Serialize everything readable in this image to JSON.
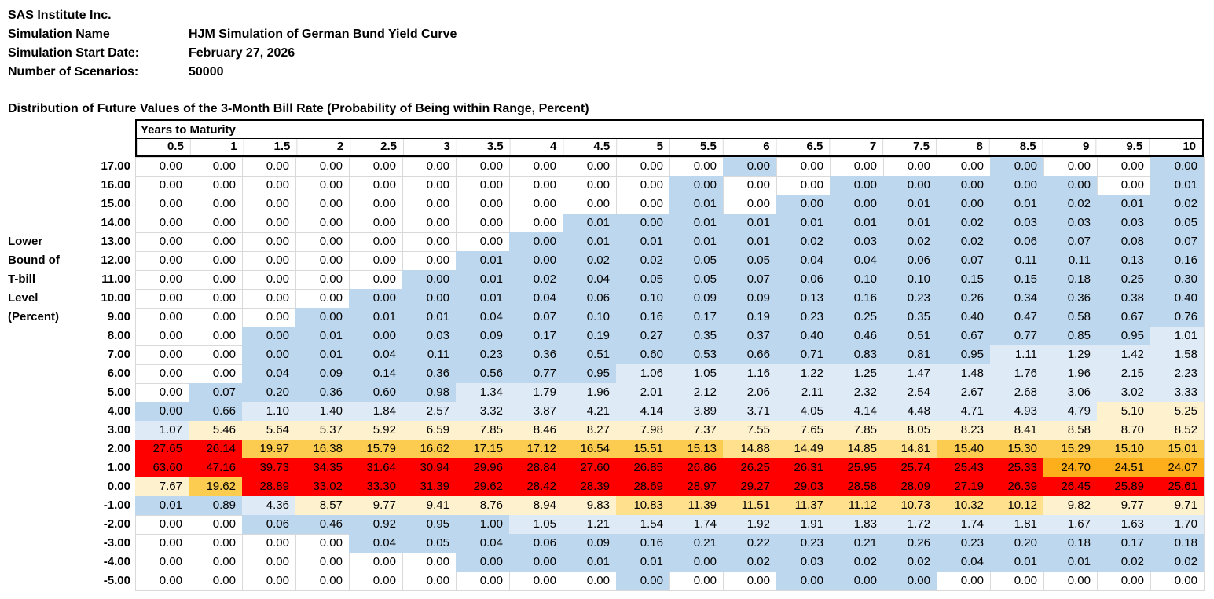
{
  "meta": {
    "company": "SAS Institute Inc.",
    "fields": [
      {
        "label": "Simulation Name",
        "value": "HJM Simulation of German Bund Yield Curve"
      },
      {
        "label": "Simulation Start Date:",
        "value": "February 27, 2026"
      },
      {
        "label": "Number of Scenarios:",
        "value": "50000"
      }
    ]
  },
  "title": "Distribution of Future Values of the 3-Month Bill Rate (Probability of Being within Range, Percent)",
  "axis": {
    "column_group_label": "Years to Maturity",
    "row_group_label_lines": [
      "Lower",
      "Bound of",
      "T-bill",
      "Level",
      "(Percent)"
    ]
  },
  "palette": {
    "w": "#FFFFFF",
    "b1": "#BDD7EE",
    "b2": "#DEEAF6",
    "c1": "#FEF2CE",
    "c2": "#FFE08C",
    "g": "#FBCC4F",
    "o": "#FCAE1B",
    "r": "#FF0000",
    "gridline": "#D9D9D9",
    "border": "#000000"
  },
  "chart_data": {
    "type": "heatmap",
    "title": "Distribution of Future Values of the 3-Month Bill Rate (Probability of Being within Range, Percent)",
    "x_label": "Years to Maturity",
    "y_label": "Lower Bound of T-bill Level (Percent)",
    "legend_position": "none",
    "grid": true,
    "columns": [
      "0.5",
      "1",
      "1.5",
      "2",
      "2.5",
      "3",
      "3.5",
      "4",
      "4.5",
      "5",
      "5.5",
      "6",
      "6.5",
      "7",
      "7.5",
      "8",
      "8.5",
      "9",
      "9.5",
      "10"
    ],
    "row_labels": [
      "17.00",
      "16.00",
      "15.00",
      "14.00",
      "13.00",
      "12.00",
      "11.00",
      "10.00",
      "9.00",
      "8.00",
      "7.00",
      "6.00",
      "5.00",
      "4.00",
      "3.00",
      "2.00",
      "1.00",
      "0.00",
      "-1.00",
      "-2.00",
      "-3.00",
      "-4.00",
      "-5.00"
    ],
    "values": [
      [
        "0.00",
        "0.00",
        "0.00",
        "0.00",
        "0.00",
        "0.00",
        "0.00",
        "0.00",
        "0.00",
        "0.00",
        "0.00",
        "0.00",
        "0.00",
        "0.00",
        "0.00",
        "0.00",
        "0.00",
        "0.00",
        "0.00",
        "0.00"
      ],
      [
        "0.00",
        "0.00",
        "0.00",
        "0.00",
        "0.00",
        "0.00",
        "0.00",
        "0.00",
        "0.00",
        "0.00",
        "0.00",
        "0.00",
        "0.00",
        "0.00",
        "0.00",
        "0.00",
        "0.00",
        "0.00",
        "0.00",
        "0.01"
      ],
      [
        "0.00",
        "0.00",
        "0.00",
        "0.00",
        "0.00",
        "0.00",
        "0.00",
        "0.00",
        "0.00",
        "0.00",
        "0.01",
        "0.00",
        "0.00",
        "0.00",
        "0.01",
        "0.00",
        "0.01",
        "0.02",
        "0.01",
        "0.02"
      ],
      [
        "0.00",
        "0.00",
        "0.00",
        "0.00",
        "0.00",
        "0.00",
        "0.00",
        "0.00",
        "0.01",
        "0.00",
        "0.01",
        "0.01",
        "0.01",
        "0.01",
        "0.01",
        "0.02",
        "0.03",
        "0.03",
        "0.03",
        "0.05"
      ],
      [
        "0.00",
        "0.00",
        "0.00",
        "0.00",
        "0.00",
        "0.00",
        "0.00",
        "0.00",
        "0.01",
        "0.01",
        "0.01",
        "0.01",
        "0.02",
        "0.03",
        "0.02",
        "0.02",
        "0.06",
        "0.07",
        "0.08",
        "0.07"
      ],
      [
        "0.00",
        "0.00",
        "0.00",
        "0.00",
        "0.00",
        "0.00",
        "0.01",
        "0.00",
        "0.02",
        "0.02",
        "0.05",
        "0.05",
        "0.04",
        "0.04",
        "0.06",
        "0.07",
        "0.11",
        "0.11",
        "0.13",
        "0.16"
      ],
      [
        "0.00",
        "0.00",
        "0.00",
        "0.00",
        "0.00",
        "0.00",
        "0.01",
        "0.02",
        "0.04",
        "0.05",
        "0.05",
        "0.07",
        "0.06",
        "0.10",
        "0.10",
        "0.15",
        "0.15",
        "0.18",
        "0.25",
        "0.30"
      ],
      [
        "0.00",
        "0.00",
        "0.00",
        "0.00",
        "0.00",
        "0.00",
        "0.01",
        "0.04",
        "0.06",
        "0.10",
        "0.09",
        "0.09",
        "0.13",
        "0.16",
        "0.23",
        "0.26",
        "0.34",
        "0.36",
        "0.38",
        "0.40"
      ],
      [
        "0.00",
        "0.00",
        "0.00",
        "0.00",
        "0.01",
        "0.01",
        "0.04",
        "0.07",
        "0.10",
        "0.16",
        "0.17",
        "0.19",
        "0.23",
        "0.25",
        "0.35",
        "0.40",
        "0.47",
        "0.58",
        "0.67",
        "0.76"
      ],
      [
        "0.00",
        "0.00",
        "0.00",
        "0.01",
        "0.00",
        "0.03",
        "0.09",
        "0.17",
        "0.19",
        "0.27",
        "0.35",
        "0.37",
        "0.40",
        "0.46",
        "0.51",
        "0.67",
        "0.77",
        "0.85",
        "0.95",
        "1.01"
      ],
      [
        "0.00",
        "0.00",
        "0.00",
        "0.01",
        "0.04",
        "0.11",
        "0.23",
        "0.36",
        "0.51",
        "0.60",
        "0.53",
        "0.66",
        "0.71",
        "0.83",
        "0.81",
        "0.95",
        "1.11",
        "1.29",
        "1.42",
        "1.58"
      ],
      [
        "0.00",
        "0.00",
        "0.04",
        "0.09",
        "0.14",
        "0.36",
        "0.56",
        "0.77",
        "0.95",
        "1.06",
        "1.05",
        "1.16",
        "1.22",
        "1.25",
        "1.47",
        "1.48",
        "1.76",
        "1.96",
        "2.15",
        "2.23"
      ],
      [
        "0.00",
        "0.07",
        "0.20",
        "0.36",
        "0.60",
        "0.98",
        "1.34",
        "1.79",
        "1.96",
        "2.01",
        "2.12",
        "2.06",
        "2.11",
        "2.32",
        "2.54",
        "2.67",
        "2.68",
        "3.06",
        "3.02",
        "3.33"
      ],
      [
        "0.00",
        "0.66",
        "1.10",
        "1.40",
        "1.84",
        "2.57",
        "3.32",
        "3.87",
        "4.21",
        "4.14",
        "3.89",
        "3.71",
        "4.05",
        "4.14",
        "4.48",
        "4.71",
        "4.93",
        "4.79",
        "5.10",
        "5.25"
      ],
      [
        "1.07",
        "5.46",
        "5.64",
        "5.37",
        "5.92",
        "6.59",
        "7.85",
        "8.46",
        "8.27",
        "7.98",
        "7.37",
        "7.55",
        "7.65",
        "7.85",
        "8.05",
        "8.23",
        "8.41",
        "8.58",
        "8.70",
        "8.52"
      ],
      [
        "27.65",
        "26.14",
        "19.97",
        "16.38",
        "15.79",
        "16.62",
        "17.15",
        "17.12",
        "16.54",
        "15.51",
        "15.13",
        "14.88",
        "14.49",
        "14.85",
        "14.81",
        "15.40",
        "15.30",
        "15.29",
        "15.10",
        "15.01"
      ],
      [
        "63.60",
        "47.16",
        "39.73",
        "34.35",
        "31.64",
        "30.94",
        "29.96",
        "28.84",
        "27.60",
        "26.85",
        "26.86",
        "26.25",
        "26.31",
        "25.95",
        "25.74",
        "25.43",
        "25.33",
        "24.70",
        "24.51",
        "24.07"
      ],
      [
        "7.67",
        "19.62",
        "28.89",
        "33.02",
        "33.30",
        "31.39",
        "29.62",
        "28.42",
        "28.39",
        "28.69",
        "28.97",
        "29.27",
        "29.03",
        "28.58",
        "28.09",
        "27.19",
        "26.39",
        "26.45",
        "25.89",
        "25.61"
      ],
      [
        "0.01",
        "0.89",
        "4.36",
        "8.57",
        "9.77",
        "9.41",
        "8.76",
        "8.94",
        "9.83",
        "10.83",
        "11.39",
        "11.51",
        "11.37",
        "11.12",
        "10.73",
        "10.32",
        "10.12",
        "9.82",
        "9.77",
        "9.71"
      ],
      [
        "0.00",
        "0.00",
        "0.06",
        "0.46",
        "0.92",
        "0.95",
        "1.00",
        "1.05",
        "1.21",
        "1.54",
        "1.74",
        "1.92",
        "1.91",
        "1.83",
        "1.72",
        "1.74",
        "1.81",
        "1.67",
        "1.63",
        "1.70"
      ],
      [
        "0.00",
        "0.00",
        "0.00",
        "0.00",
        "0.04",
        "0.05",
        "0.04",
        "0.06",
        "0.09",
        "0.16",
        "0.21",
        "0.22",
        "0.23",
        "0.21",
        "0.26",
        "0.23",
        "0.20",
        "0.18",
        "0.17",
        "0.18"
      ],
      [
        "0.00",
        "0.00",
        "0.00",
        "0.00",
        "0.00",
        "0.00",
        "0.00",
        "0.00",
        "0.01",
        "0.01",
        "0.00",
        "0.02",
        "0.03",
        "0.02",
        "0.02",
        "0.04",
        "0.01",
        "0.01",
        "0.02",
        "0.02"
      ],
      [
        "0.00",
        "0.00",
        "0.00",
        "0.00",
        "0.00",
        "0.00",
        "0.00",
        "0.00",
        "0.00",
        "0.00",
        "0.00",
        "0.00",
        "0.00",
        "0.00",
        "0.00",
        "0.00",
        "0.00",
        "0.00",
        "0.00",
        "0.00"
      ]
    ],
    "cell_colors": [
      [
        "w",
        "w",
        "w",
        "w",
        "w",
        "w",
        "w",
        "w",
        "w",
        "w",
        "w",
        "b1",
        "w",
        "w",
        "w",
        "w",
        "b1",
        "w",
        "w",
        "b1"
      ],
      [
        "w",
        "w",
        "w",
        "w",
        "w",
        "w",
        "w",
        "w",
        "w",
        "w",
        "b1",
        "w",
        "w",
        "b1",
        "b1",
        "b1",
        "b1",
        "b1",
        "w",
        "b1"
      ],
      [
        "w",
        "w",
        "w",
        "w",
        "w",
        "w",
        "w",
        "w",
        "w",
        "w",
        "b1",
        "w",
        "b1",
        "b1",
        "b1",
        "b1",
        "b1",
        "b1",
        "b1",
        "b1"
      ],
      [
        "w",
        "w",
        "w",
        "w",
        "w",
        "w",
        "w",
        "w",
        "b1",
        "b1",
        "b1",
        "b1",
        "b1",
        "b1",
        "b1",
        "b1",
        "b1",
        "b1",
        "b1",
        "b1"
      ],
      [
        "w",
        "w",
        "w",
        "w",
        "w",
        "w",
        "w",
        "b1",
        "b1",
        "b1",
        "b1",
        "b1",
        "b1",
        "b1",
        "b1",
        "b1",
        "b1",
        "b1",
        "b1",
        "b1"
      ],
      [
        "w",
        "w",
        "w",
        "w",
        "w",
        "w",
        "b1",
        "b1",
        "b1",
        "b1",
        "b1",
        "b1",
        "b1",
        "b1",
        "b1",
        "b1",
        "b1",
        "b1",
        "b1",
        "b1"
      ],
      [
        "w",
        "w",
        "w",
        "w",
        "w",
        "b1",
        "b1",
        "b1",
        "b1",
        "b1",
        "b1",
        "b1",
        "b1",
        "b1",
        "b1",
        "b1",
        "b1",
        "b1",
        "b1",
        "b1"
      ],
      [
        "w",
        "w",
        "w",
        "w",
        "b1",
        "b1",
        "b1",
        "b1",
        "b1",
        "b1",
        "b1",
        "b1",
        "b1",
        "b1",
        "b1",
        "b1",
        "b1",
        "b1",
        "b1",
        "b1"
      ],
      [
        "w",
        "w",
        "w",
        "b1",
        "b1",
        "b1",
        "b1",
        "b1",
        "b1",
        "b1",
        "b1",
        "b1",
        "b1",
        "b1",
        "b1",
        "b1",
        "b1",
        "b1",
        "b1",
        "b1"
      ],
      [
        "w",
        "w",
        "b1",
        "b1",
        "b1",
        "b1",
        "b1",
        "b1",
        "b1",
        "b1",
        "b1",
        "b1",
        "b1",
        "b1",
        "b1",
        "b1",
        "b1",
        "b1",
        "b1",
        "b2"
      ],
      [
        "w",
        "w",
        "b1",
        "b1",
        "b1",
        "b1",
        "b1",
        "b1",
        "b1",
        "b1",
        "b1",
        "b1",
        "b1",
        "b1",
        "b1",
        "b1",
        "b2",
        "b2",
        "b2",
        "b2"
      ],
      [
        "w",
        "w",
        "b1",
        "b1",
        "b1",
        "b1",
        "b1",
        "b1",
        "b1",
        "b2",
        "b2",
        "b2",
        "b2",
        "b2",
        "b2",
        "b2",
        "b2",
        "b2",
        "b2",
        "b2"
      ],
      [
        "w",
        "b1",
        "b1",
        "b1",
        "b1",
        "b1",
        "b2",
        "b2",
        "b2",
        "b2",
        "b2",
        "b2",
        "b2",
        "b2",
        "b2",
        "b2",
        "b2",
        "b2",
        "b2",
        "b2"
      ],
      [
        "b1",
        "b1",
        "b2",
        "b2",
        "b2",
        "b2",
        "b2",
        "b2",
        "b2",
        "b2",
        "b2",
        "b2",
        "b2",
        "b2",
        "b2",
        "b2",
        "b2",
        "b2",
        "c1",
        "c1"
      ],
      [
        "b2",
        "c1",
        "c1",
        "c1",
        "c1",
        "c1",
        "c1",
        "c1",
        "c1",
        "c1",
        "c1",
        "c1",
        "c1",
        "c1",
        "c1",
        "c1",
        "c1",
        "c1",
        "c1",
        "c1"
      ],
      [
        "r",
        "r",
        "g",
        "g",
        "g",
        "g",
        "g",
        "g",
        "g",
        "g",
        "g",
        "c2",
        "c2",
        "c2",
        "c2",
        "g",
        "g",
        "g",
        "g",
        "g"
      ],
      [
        "r",
        "r",
        "r",
        "r",
        "r",
        "r",
        "r",
        "r",
        "r",
        "r",
        "r",
        "r",
        "r",
        "r",
        "r",
        "r",
        "r",
        "o",
        "o",
        "o"
      ],
      [
        "c1",
        "g",
        "r",
        "r",
        "r",
        "r",
        "r",
        "r",
        "r",
        "r",
        "r",
        "r",
        "r",
        "r",
        "r",
        "r",
        "r",
        "r",
        "r",
        "r"
      ],
      [
        "b1",
        "b1",
        "b2",
        "c1",
        "c1",
        "c1",
        "c1",
        "c1",
        "c1",
        "c2",
        "c2",
        "c2",
        "c2",
        "c2",
        "c2",
        "c2",
        "c2",
        "c1",
        "c1",
        "c1"
      ],
      [
        "w",
        "w",
        "b1",
        "b1",
        "b1",
        "b1",
        "b1",
        "b2",
        "b2",
        "b2",
        "b2",
        "b2",
        "b2",
        "b2",
        "b2",
        "b2",
        "b2",
        "b2",
        "b2",
        "b2"
      ],
      [
        "w",
        "w",
        "w",
        "w",
        "b1",
        "b1",
        "b1",
        "b1",
        "b1",
        "b1",
        "b1",
        "b1",
        "b1",
        "b1",
        "b1",
        "b1",
        "b1",
        "b1",
        "b1",
        "b1"
      ],
      [
        "w",
        "w",
        "w",
        "w",
        "w",
        "w",
        "b1",
        "b1",
        "b1",
        "b1",
        "b1",
        "b1",
        "b1",
        "b1",
        "b1",
        "b1",
        "b1",
        "b1",
        "b1",
        "b1"
      ],
      [
        "w",
        "w",
        "w",
        "w",
        "w",
        "w",
        "w",
        "w",
        "w",
        "b1",
        "w",
        "w",
        "b1",
        "b1",
        "b1",
        "w",
        "w",
        "w",
        "w",
        "w"
      ]
    ]
  }
}
